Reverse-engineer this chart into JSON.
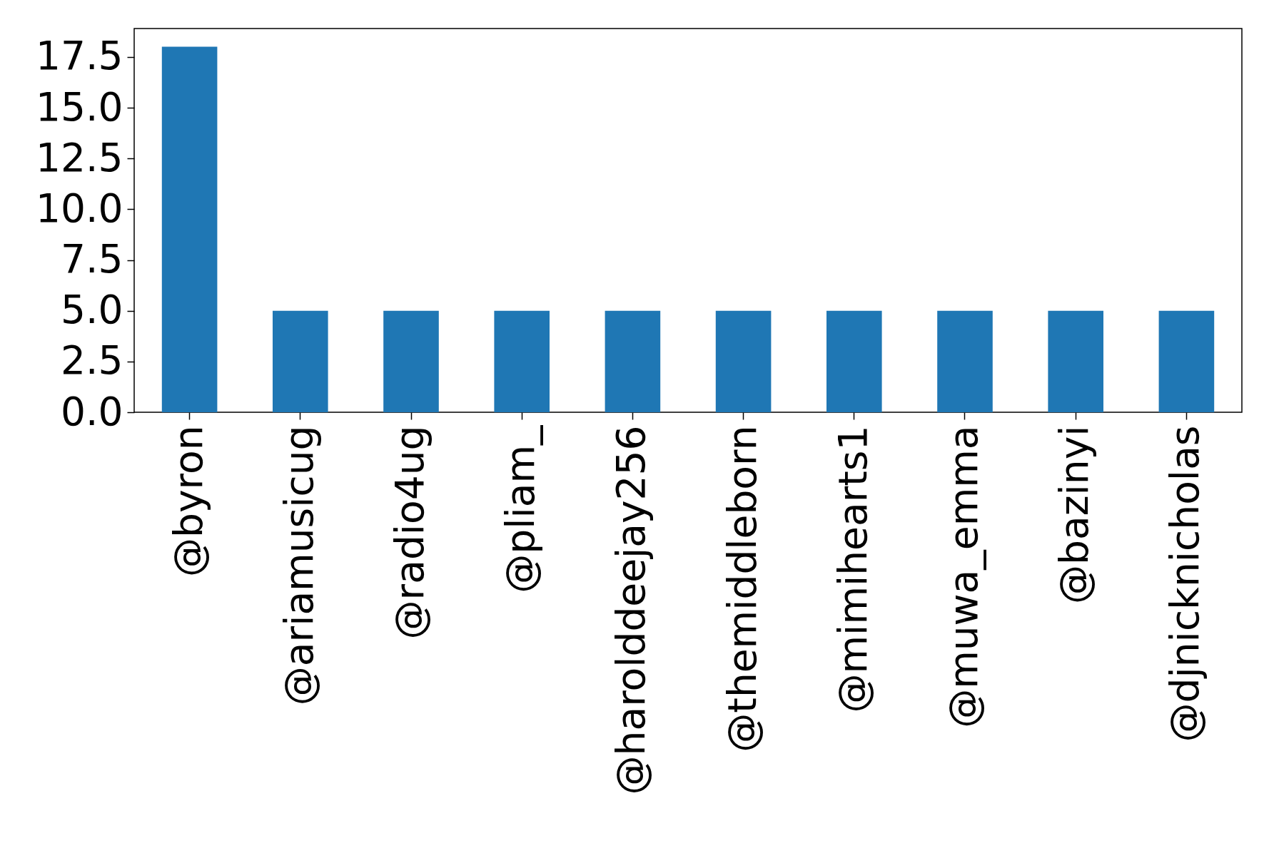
{
  "chart_data": {
    "type": "bar",
    "categories": [
      "@byron",
      "@ariamusicug",
      "@radio4ug",
      "@pliam_",
      "@harolddeejay256",
      "@themiddleborn",
      "@mimihearts1",
      "@muwa_emma",
      "@bazinyi",
      "@djnicknicholas"
    ],
    "values": [
      18,
      5,
      5,
      5,
      5,
      5,
      5,
      5,
      5,
      5
    ],
    "color": "#1f77b4",
    "ylim": [
      0,
      18.9
    ],
    "yticks": [
      {
        "value": 0,
        "label": "0.0"
      },
      {
        "value": 2.5,
        "label": "2.5"
      },
      {
        "value": 5,
        "label": "5.0"
      },
      {
        "value": 7.5,
        "label": "7.5"
      },
      {
        "value": 10,
        "label": "10.0"
      },
      {
        "value": 12.5,
        "label": "12.5"
      },
      {
        "value": 15,
        "label": "15.0"
      },
      {
        "value": 17.5,
        "label": "17.5"
      }
    ],
    "grid": false
  }
}
